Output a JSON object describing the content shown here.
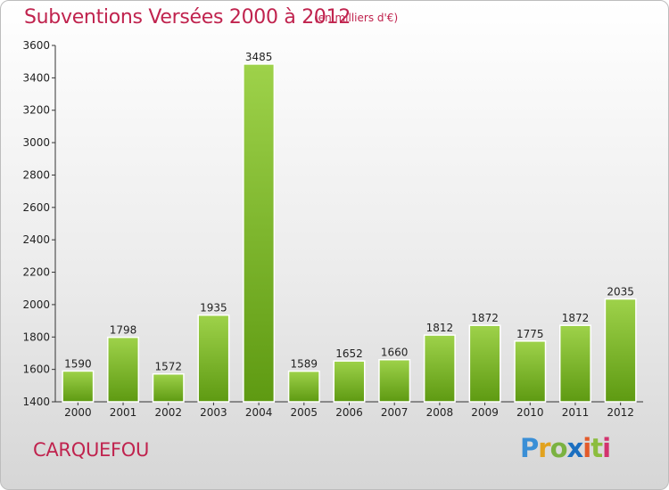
{
  "title": "Subventions Versées 2000 à 2012",
  "unit": "(en milliers d'€)",
  "city": "CARQUEFOU",
  "logo": [
    "P",
    "r",
    "o",
    "x",
    "i",
    "t",
    "i"
  ],
  "colors": {
    "bar_top": "#9ed24a",
    "bar_bottom": "#5e9a12",
    "accent": "#c0234e"
  },
  "chart_data": {
    "type": "bar",
    "categories": [
      "2000",
      "2001",
      "2002",
      "2003",
      "2004",
      "2005",
      "2006",
      "2007",
      "2008",
      "2009",
      "2010",
      "2011",
      "2012"
    ],
    "values": [
      1590,
      1798,
      1572,
      1935,
      3485,
      1589,
      1652,
      1660,
      1812,
      1872,
      1775,
      1872,
      2035
    ],
    "title": "Subventions Versées 2000 à 2012",
    "ylim": [
      1400,
      3600
    ],
    "yticks": [
      1400,
      1600,
      1800,
      2000,
      2200,
      2400,
      2600,
      2800,
      3000,
      3200,
      3400,
      3600
    ],
    "grid": false
  }
}
